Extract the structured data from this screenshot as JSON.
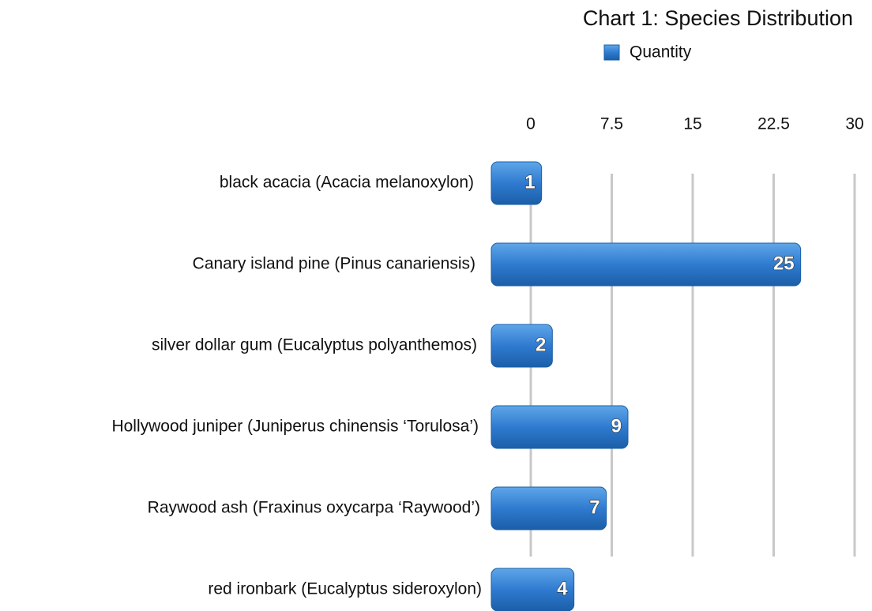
{
  "chart_data": {
    "type": "barh",
    "title": "Chart 1: Species Distribution",
    "categories": [
      "black acacia (Acacia melanoxylon)",
      "Canary island pine (Pinus canariensis)",
      "silver dollar gum (Eucalyptus polyanthemos)",
      "Hollywood juniper (Juniperus chinensis ‘Torulosa’)",
      "Raywood ash (Fraxinus oxycarpa ‘Raywood’)",
      "red ironbark (Eucalyptus sideroxylon)"
    ],
    "series": [
      {
        "name": "Quantity",
        "color": "#2f7bd0",
        "values": [
          1,
          25,
          2,
          9,
          7,
          4
        ]
      }
    ],
    "xlim": [
      0,
      30
    ],
    "xticks": [
      0,
      7.5,
      15,
      22.5,
      30
    ],
    "grid": true,
    "legend": "top"
  }
}
